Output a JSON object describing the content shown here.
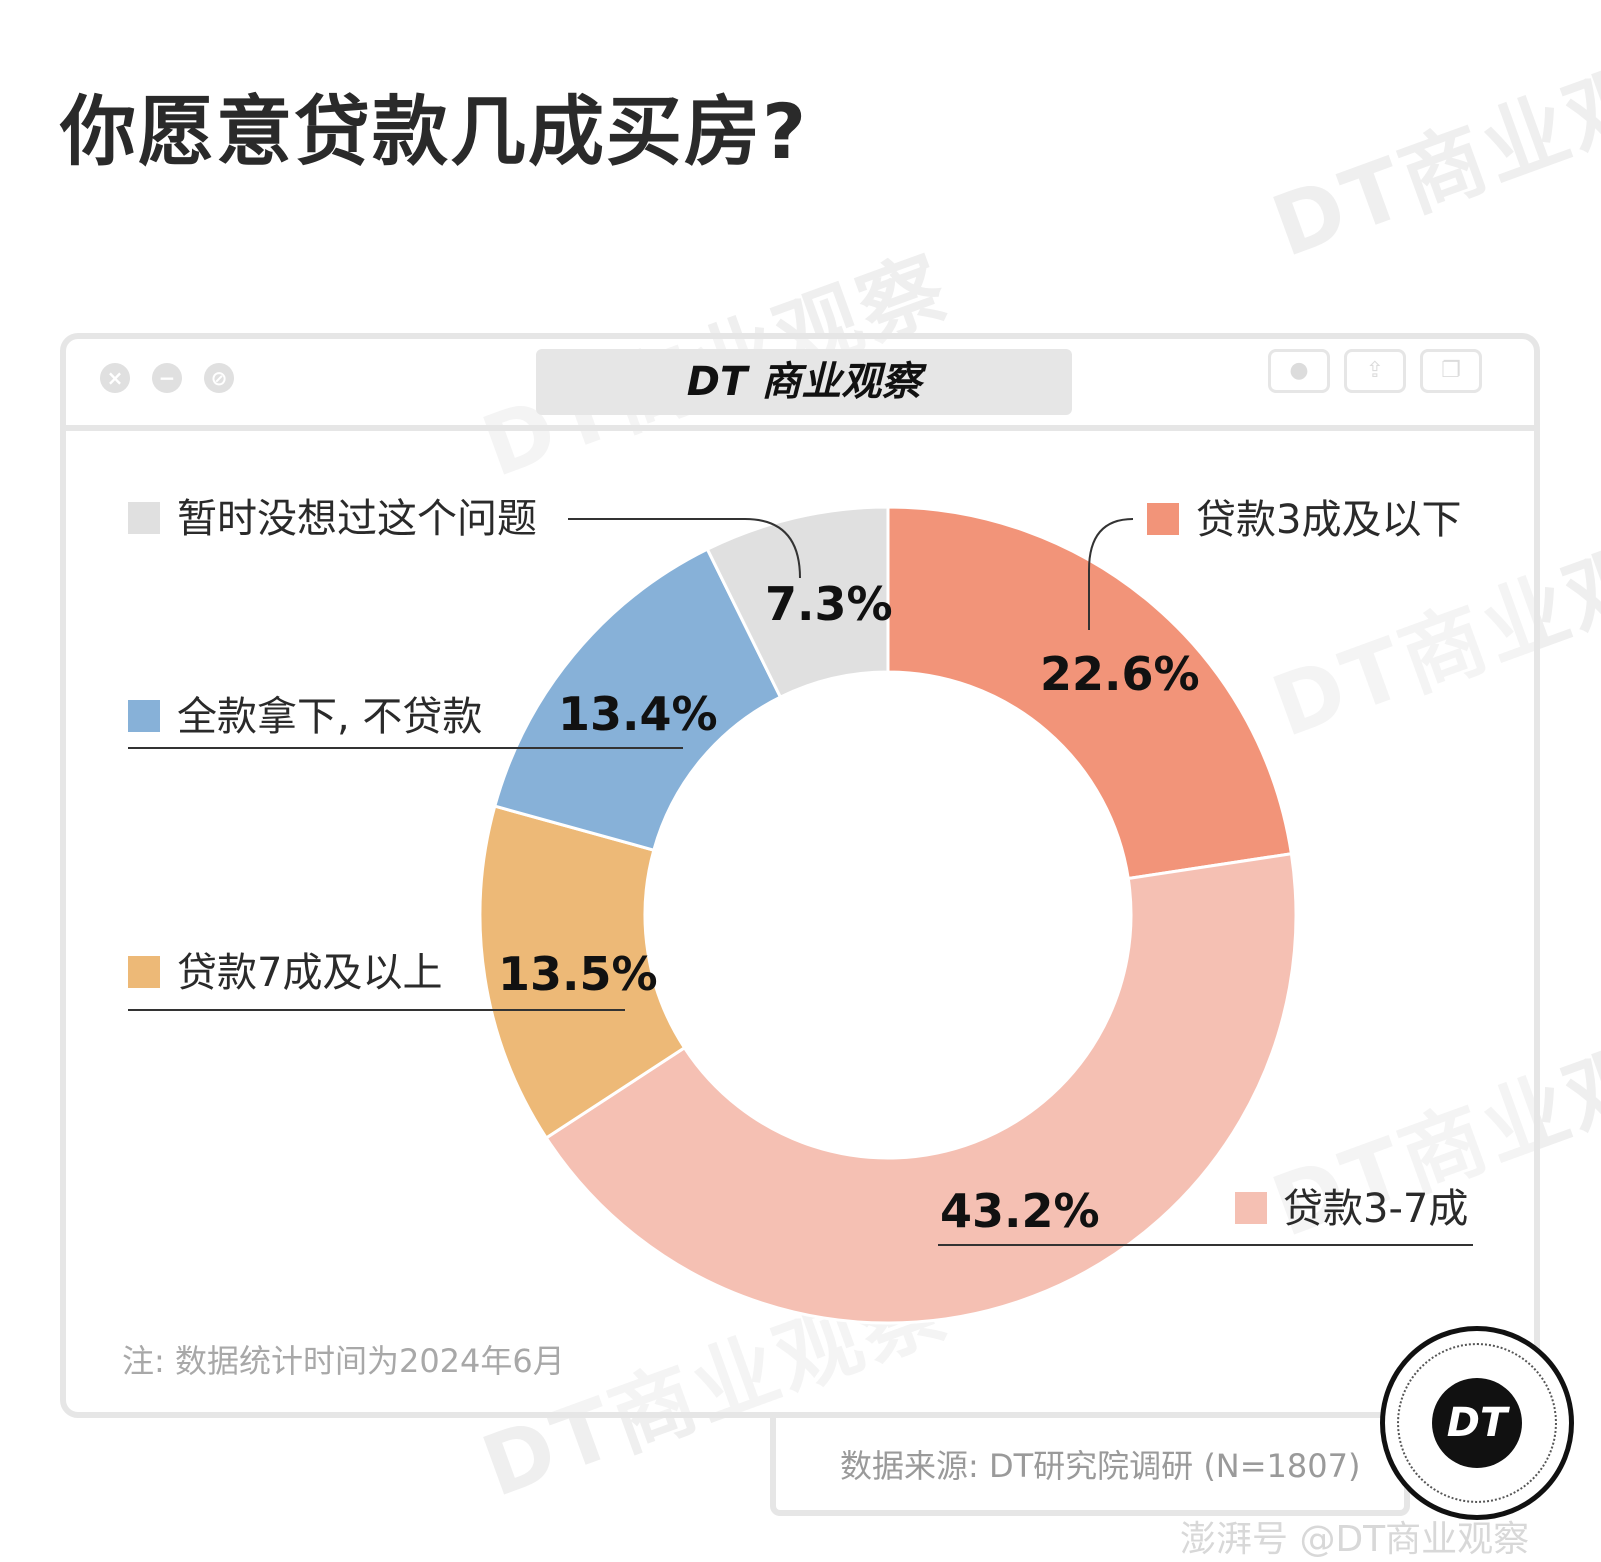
{
  "title": "你愿意贷款几成买房?",
  "watermark_text": "DT商业观察",
  "window": {
    "brand_label": "DT 商业观察"
  },
  "chart_data": {
    "type": "pie",
    "variant": "donut",
    "slices": [
      {
        "label": "贷款3成及以下",
        "value": 22.6,
        "value_label": "22.6%",
        "color": "#F29479"
      },
      {
        "label": "贷款3-7成",
        "value": 43.2,
        "value_label": "43.2%",
        "color": "#F5C0B3"
      },
      {
        "label": "贷款7成及以上",
        "value": 13.5,
        "value_label": "13.5%",
        "color": "#EDB977"
      },
      {
        "label": "全款拿下, 不贷款",
        "value": 13.4,
        "value_label": "13.4%",
        "color": "#87B1D8"
      },
      {
        "label": "暂时没想过这个问题",
        "value": 7.3,
        "value_label": "7.3%",
        "color": "#E0E0E0"
      }
    ]
  },
  "note": "注: 数据统计时间为2024年6月",
  "source": "数据来源: DT研究院调研 (N=1807)",
  "badge_label": "DT",
  "footer_credit": "澎湃号 @DT商业观察"
}
